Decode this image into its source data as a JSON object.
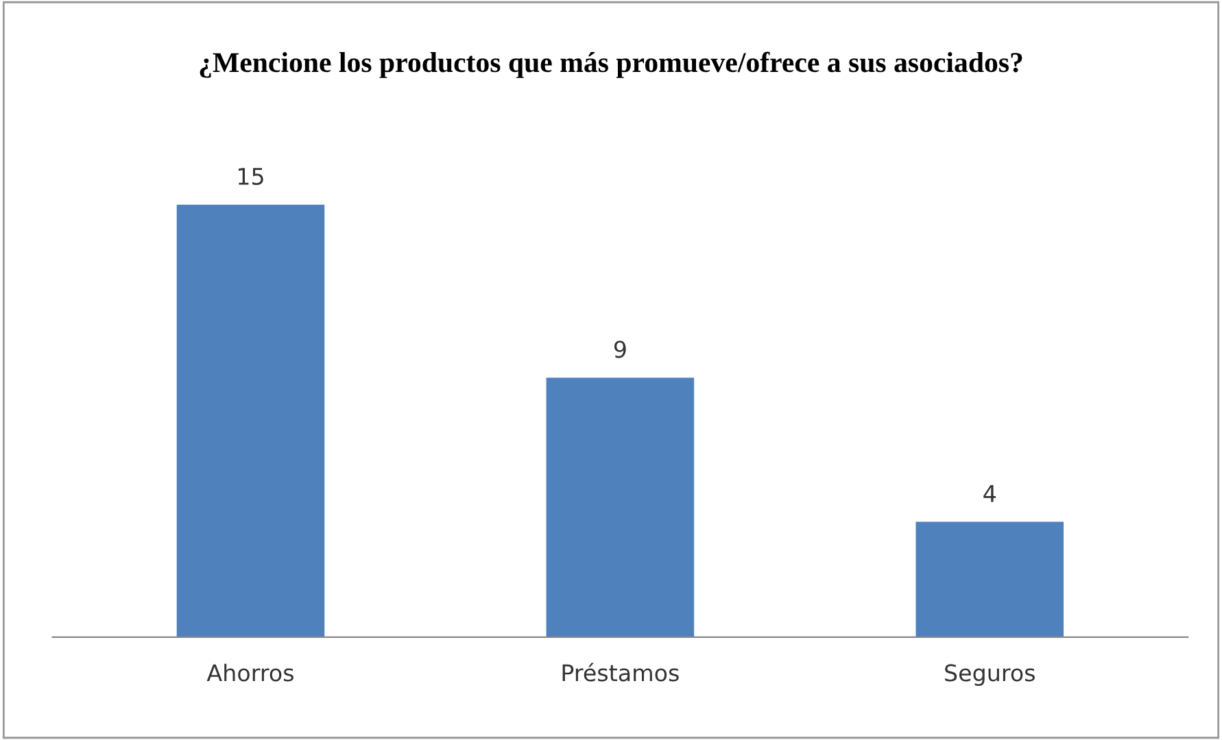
{
  "chart_data": {
    "type": "bar",
    "title": "¿Mencione los productos que más promueve/ofrece a sus asociados?",
    "categories": [
      "Ahorros",
      "Préstamos",
      "Seguros"
    ],
    "values": [
      15,
      9,
      4
    ],
    "color": "#4f81bd",
    "data_labels": true,
    "grid": false,
    "legend": false
  }
}
